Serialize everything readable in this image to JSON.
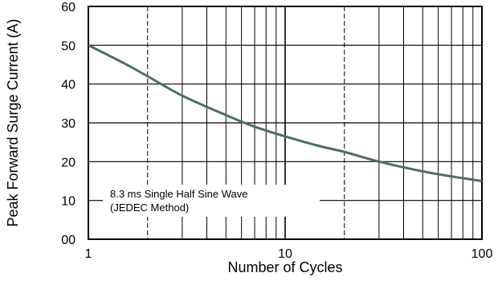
{
  "chart_data": {
    "type": "line",
    "title": "",
    "xlabel": "Number of Cycles",
    "ylabel": "Peak Forward Surge Current (A)",
    "xscale": "log",
    "xlim": [
      1,
      100
    ],
    "ylim": [
      0,
      60
    ],
    "grid": true,
    "x_ticks": [
      "1",
      "10",
      "100"
    ],
    "y_ticks": [
      "00",
      "10",
      "20",
      "30",
      "40",
      "50",
      "60"
    ],
    "series": [
      {
        "x": [
          1,
          1.5,
          2,
          3,
          5,
          7,
          10,
          15,
          20,
          30,
          50,
          70,
          100
        ],
        "y": [
          50,
          45.5,
          42,
          37,
          32,
          29,
          26.5,
          24,
          22.5,
          20,
          17.5,
          16.2,
          15
        ]
      }
    ],
    "annotation": {
      "line1": "8.3 ms Single Half Sine Wave",
      "line2": "(JEDEC Method)"
    },
    "colors": {
      "curve": "#4a6e68",
      "grid": "#000000",
      "frame": "#000000"
    }
  }
}
